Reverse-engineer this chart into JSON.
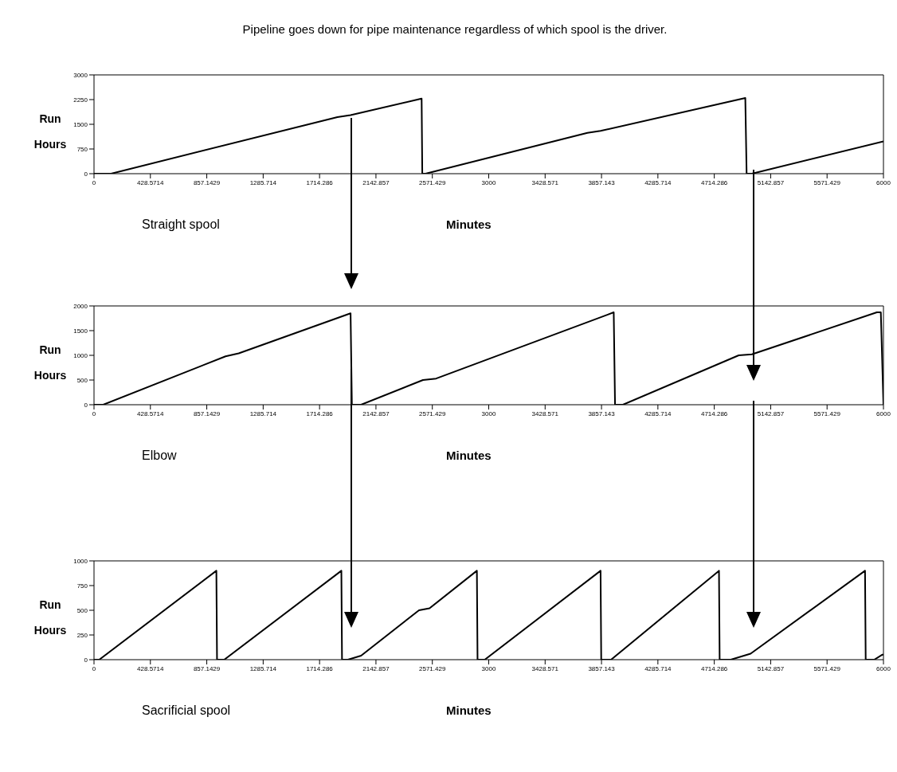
{
  "chart_data": [
    {
      "type": "line",
      "title": "Pipeline goes down for pipe maintenance regardless of which spool is the driver.",
      "xlabel": "Minutes",
      "ylabel": "Run Hours",
      "annotations": [
        "Straight spool"
      ],
      "x": [
        0,
        130,
        1850,
        1950,
        2490,
        2495,
        2520,
        3750,
        3850,
        4950,
        4960,
        5000,
        6000
      ],
      "series": [
        {
          "color": "#000000",
          "values": [
            0,
            0,
            1720,
            1780,
            2280,
            0,
            0,
            1240,
            1300,
            2300,
            0,
            0,
            980
          ]
        }
      ],
      "xlim": [
        0,
        6000
      ],
      "xticks": [
        0,
        428.5714,
        857.1429,
        1285.714,
        1714.286,
        2142.857,
        2571.429,
        3000,
        3428.571,
        3857.143,
        4285.714,
        4714.286,
        5142.857,
        5571.429,
        6000
      ],
      "ylim": [
        0,
        3000
      ],
      "yticks": [
        0,
        750,
        1500,
        2250,
        3000
      ],
      "grid": false,
      "legend": false,
      "marker": "none",
      "line_style": "solid"
    },
    {
      "type": "line",
      "xlabel": "Minutes",
      "ylabel": "Run Hours",
      "annotations": [
        "Elbow"
      ],
      "x": [
        0,
        70,
        1000,
        1100,
        1950,
        1960,
        2030,
        2500,
        2600,
        3950,
        3960,
        4020,
        4900,
        5000,
        5950,
        5980,
        6000
      ],
      "series": [
        {
          "color": "#000000",
          "values": [
            0,
            0,
            980,
            1040,
            1850,
            0,
            0,
            500,
            530,
            1870,
            0,
            0,
            1000,
            1020,
            1870,
            1870,
            0
          ]
        }
      ],
      "xlim": [
        0,
        6000
      ],
      "xticks": [
        0,
        428.5714,
        857.1429,
        1285.714,
        1714.286,
        2142.857,
        2571.429,
        3000,
        3428.571,
        3857.143,
        4285.714,
        4714.286,
        5142.857,
        5571.429,
        6000
      ],
      "ylim": [
        0,
        2000
      ],
      "yticks": [
        0,
        500,
        1000,
        1500,
        2000
      ],
      "grid": false,
      "legend": false,
      "marker": "none",
      "line_style": "solid"
    },
    {
      "type": "line",
      "xlabel": "Minutes",
      "ylabel": "Run Hours",
      "annotations": [
        "Sacrificial spool"
      ],
      "x": [
        0,
        40,
        930,
        935,
        990,
        1880,
        1885,
        1930,
        2030,
        2470,
        2550,
        2910,
        2915,
        2970,
        3850,
        3855,
        3930,
        4750,
        4755,
        4840,
        4990,
        5860,
        5865,
        5930,
        5990,
        6000
      ],
      "series": [
        {
          "color": "#000000",
          "values": [
            0,
            0,
            900,
            0,
            0,
            900,
            0,
            0,
            40,
            500,
            520,
            900,
            0,
            0,
            900,
            0,
            0,
            900,
            0,
            0,
            60,
            900,
            0,
            0,
            50,
            50
          ]
        }
      ],
      "xlim": [
        0,
        6000
      ],
      "xticks": [
        0,
        428.5714,
        857.1429,
        1285.714,
        1714.286,
        2142.857,
        2571.429,
        3000,
        3428.571,
        3857.143,
        4285.714,
        4714.286,
        5142.857,
        5571.429,
        6000
      ],
      "ylim": [
        0,
        1000
      ],
      "yticks": [
        0,
        250,
        500,
        750,
        1000
      ],
      "grid": false,
      "legend": false,
      "marker": "none",
      "line_style": "solid"
    }
  ]
}
